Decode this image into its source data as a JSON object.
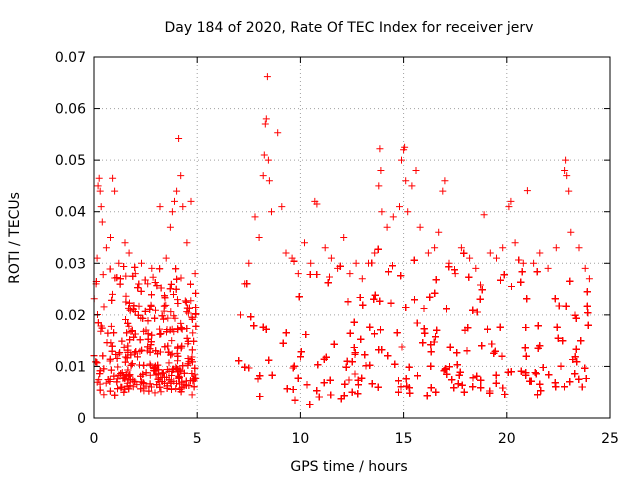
{
  "chart_data": {
    "type": "scatter",
    "title": "Day 184 of 2020, Rate Of TEC Index for receiver jerv",
    "xlabel": "GPS time / hours",
    "ylabel": "ROTI / TECUs",
    "xlim": [
      0,
      25
    ],
    "ylim": [
      0,
      0.07
    ],
    "xticks": [
      0,
      5,
      10,
      15,
      20,
      25
    ],
    "yticks": [
      0,
      0.01,
      0.02,
      0.03,
      0.04,
      0.05,
      0.06,
      0.07
    ],
    "xtick_labels": [
      "0",
      "5",
      "10",
      "15",
      "20",
      "25"
    ],
    "ytick_labels": [
      "0",
      "0.01",
      "0.02",
      "0.03",
      "0.04",
      "0.05",
      "0.06",
      "0.07"
    ],
    "grid": true,
    "marker": "+",
    "color": "#ff0000",
    "series": [
      {
        "name": "ROTI",
        "points": [
          [
            0.1,
            0.026
          ],
          [
            0.15,
            0.031
          ],
          [
            0.2,
            0.045
          ],
          [
            0.25,
            0.0465
          ],
          [
            0.3,
            0.044
          ],
          [
            0.35,
            0.041
          ],
          [
            0.4,
            0.038
          ],
          [
            0.6,
            0.033
          ],
          [
            0.8,
            0.035
          ],
          [
            0.9,
            0.0465
          ],
          [
            1.0,
            0.044
          ],
          [
            1.2,
            0.03
          ],
          [
            1.5,
            0.034
          ],
          [
            1.7,
            0.032
          ],
          [
            2.0,
            0.028
          ],
          [
            2.3,
            0.03
          ],
          [
            2.6,
            0.026
          ],
          [
            2.8,
            0.029
          ],
          [
            3.2,
            0.041
          ],
          [
            3.5,
            0.031
          ],
          [
            3.7,
            0.037
          ],
          [
            3.8,
            0.04
          ],
          [
            3.9,
            0.042
          ],
          [
            4.0,
            0.044
          ],
          [
            4.1,
            0.0542
          ],
          [
            4.2,
            0.047
          ],
          [
            4.3,
            0.041
          ],
          [
            4.5,
            0.034
          ],
          [
            4.7,
            0.042
          ],
          [
            4.9,
            0.028
          ],
          [
            7.1,
            0.02
          ],
          [
            7.3,
            0.026
          ],
          [
            7.5,
            0.03
          ],
          [
            7.8,
            0.039
          ],
          [
            8.0,
            0.035
          ],
          [
            8.2,
            0.047
          ],
          [
            8.25,
            0.051
          ],
          [
            8.3,
            0.057
          ],
          [
            8.35,
            0.058
          ],
          [
            8.4,
            0.0662
          ],
          [
            8.45,
            0.05
          ],
          [
            8.5,
            0.046
          ],
          [
            8.6,
            0.04
          ],
          [
            8.9,
            0.0553
          ],
          [
            9.1,
            0.041
          ],
          [
            9.3,
            0.032
          ],
          [
            9.6,
            0.031
          ],
          [
            9.9,
            0.028
          ],
          [
            10.2,
            0.034
          ],
          [
            10.5,
            0.03
          ],
          [
            10.7,
            0.042
          ],
          [
            10.8,
            0.0415
          ],
          [
            11.2,
            0.033
          ],
          [
            11.5,
            0.031
          ],
          [
            11.8,
            0.029
          ],
          [
            12.1,
            0.035
          ],
          [
            12.4,
            0.028
          ],
          [
            12.7,
            0.03
          ],
          [
            13.0,
            0.027
          ],
          [
            13.3,
            0.03
          ],
          [
            13.6,
            0.032
          ],
          [
            13.8,
            0.045
          ],
          [
            13.85,
            0.0522
          ],
          [
            13.9,
            0.048
          ],
          [
            13.95,
            0.04
          ],
          [
            14.2,
            0.037
          ],
          [
            14.5,
            0.039
          ],
          [
            14.8,
            0.041
          ],
          [
            14.9,
            0.05
          ],
          [
            15.0,
            0.052
          ],
          [
            15.05,
            0.0525
          ],
          [
            15.1,
            0.046
          ],
          [
            15.2,
            0.04
          ],
          [
            15.4,
            0.045
          ],
          [
            15.6,
            0.048
          ],
          [
            15.8,
            0.037
          ],
          [
            16.2,
            0.032
          ],
          [
            16.5,
            0.033
          ],
          [
            16.7,
            0.036
          ],
          [
            16.9,
            0.044
          ],
          [
            17.0,
            0.046
          ],
          [
            17.2,
            0.03
          ],
          [
            17.5,
            0.028
          ],
          [
            17.8,
            0.033
          ],
          [
            18.2,
            0.031
          ],
          [
            18.5,
            0.029
          ],
          [
            18.9,
            0.0394
          ],
          [
            19.2,
            0.032
          ],
          [
            19.5,
            0.031
          ],
          [
            19.8,
            0.033
          ],
          [
            20.1,
            0.041
          ],
          [
            20.2,
            0.042
          ],
          [
            20.4,
            0.034
          ],
          [
            20.8,
            0.03
          ],
          [
            21.0,
            0.0441
          ],
          [
            21.3,
            0.03
          ],
          [
            21.6,
            0.032
          ],
          [
            22.0,
            0.029
          ],
          [
            22.4,
            0.033
          ],
          [
            22.8,
            0.048
          ],
          [
            22.85,
            0.05
          ],
          [
            22.9,
            0.047
          ],
          [
            23.0,
            0.044
          ],
          [
            23.1,
            0.036
          ],
          [
            23.5,
            0.033
          ],
          [
            23.8,
            0.029
          ],
          [
            24.0,
            0.027
          ]
        ],
        "envelope": {
          "x_ranges": [
            [
              0,
              4.95
            ],
            [
              7.0,
              24.0
            ]
          ],
          "y_floor": [
            [
              0,
              0.004
            ],
            [
              5,
              0.004
            ],
            [
              7,
              0.003
            ],
            [
              10,
              0.002
            ],
            [
              13,
              0.003
            ],
            [
              20,
              0.003
            ],
            [
              24,
              0.004
            ]
          ],
          "y_typical_top": [
            [
              0,
              0.026
            ],
            [
              4,
              0.026
            ],
            [
              7,
              0.025
            ],
            [
              9,
              0.028
            ],
            [
              12,
              0.026
            ],
            [
              14,
              0.03
            ],
            [
              16,
              0.03
            ],
            [
              20,
              0.028
            ],
            [
              24,
              0.026
            ]
          ]
        }
      }
    ]
  }
}
